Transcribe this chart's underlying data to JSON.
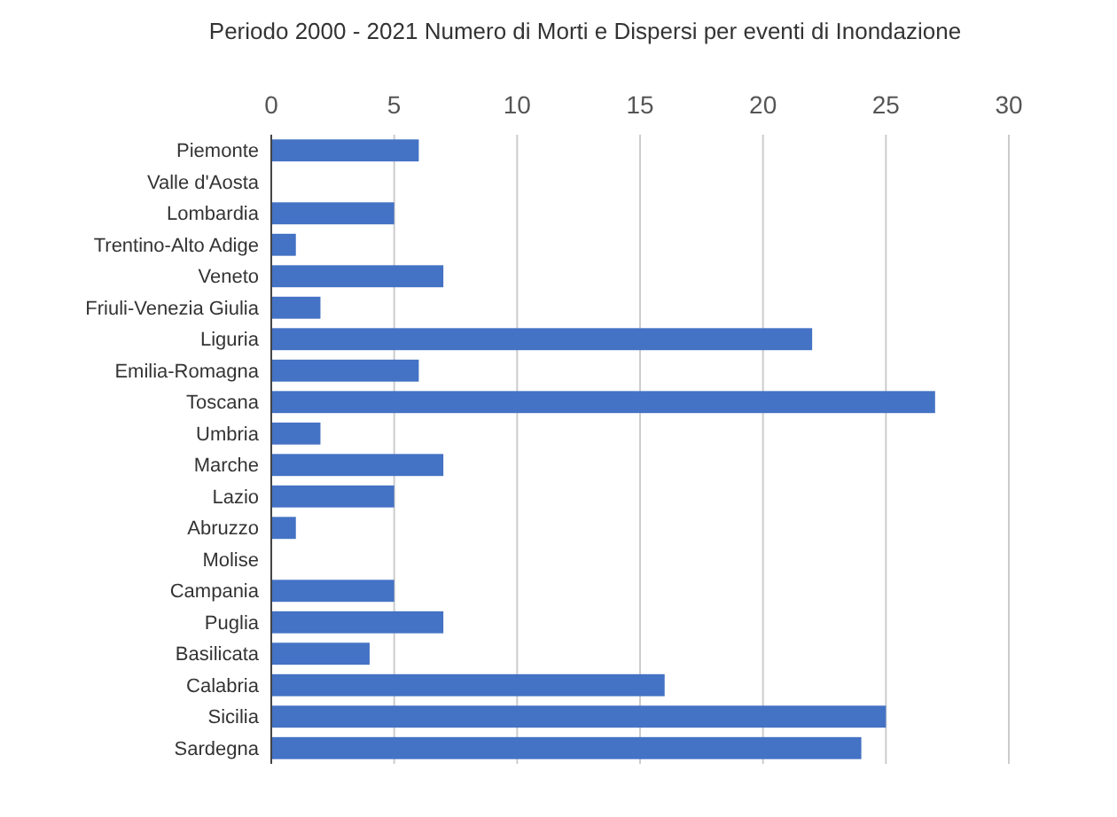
{
  "chart_data": {
    "type": "bar",
    "orientation": "horizontal",
    "title": "Periodo 2000 - 2021 Numero di Morti e Dispersi per eventi di Inondazione",
    "categories": [
      "Piemonte",
      "Valle d'Aosta",
      "Lombardia",
      "Trentino-Alto Adige",
      "Veneto",
      "Friuli-Venezia Giulia",
      "Liguria",
      "Emilia-Romagna",
      "Toscana",
      "Umbria",
      "Marche",
      "Lazio",
      "Abruzzo",
      "Molise",
      "Campania",
      "Puglia",
      "Basilicata",
      "Calabria",
      "Sicilia",
      "Sardegna"
    ],
    "values": [
      6,
      0,
      5,
      1,
      7,
      2,
      22,
      6,
      27,
      2,
      7,
      5,
      1,
      0,
      5,
      7,
      4,
      16,
      25,
      24
    ],
    "color": "#4472c4",
    "xlim": [
      0,
      30
    ],
    "xticks": [
      0,
      5,
      10,
      15,
      20,
      25,
      30
    ],
    "grid": "x"
  }
}
